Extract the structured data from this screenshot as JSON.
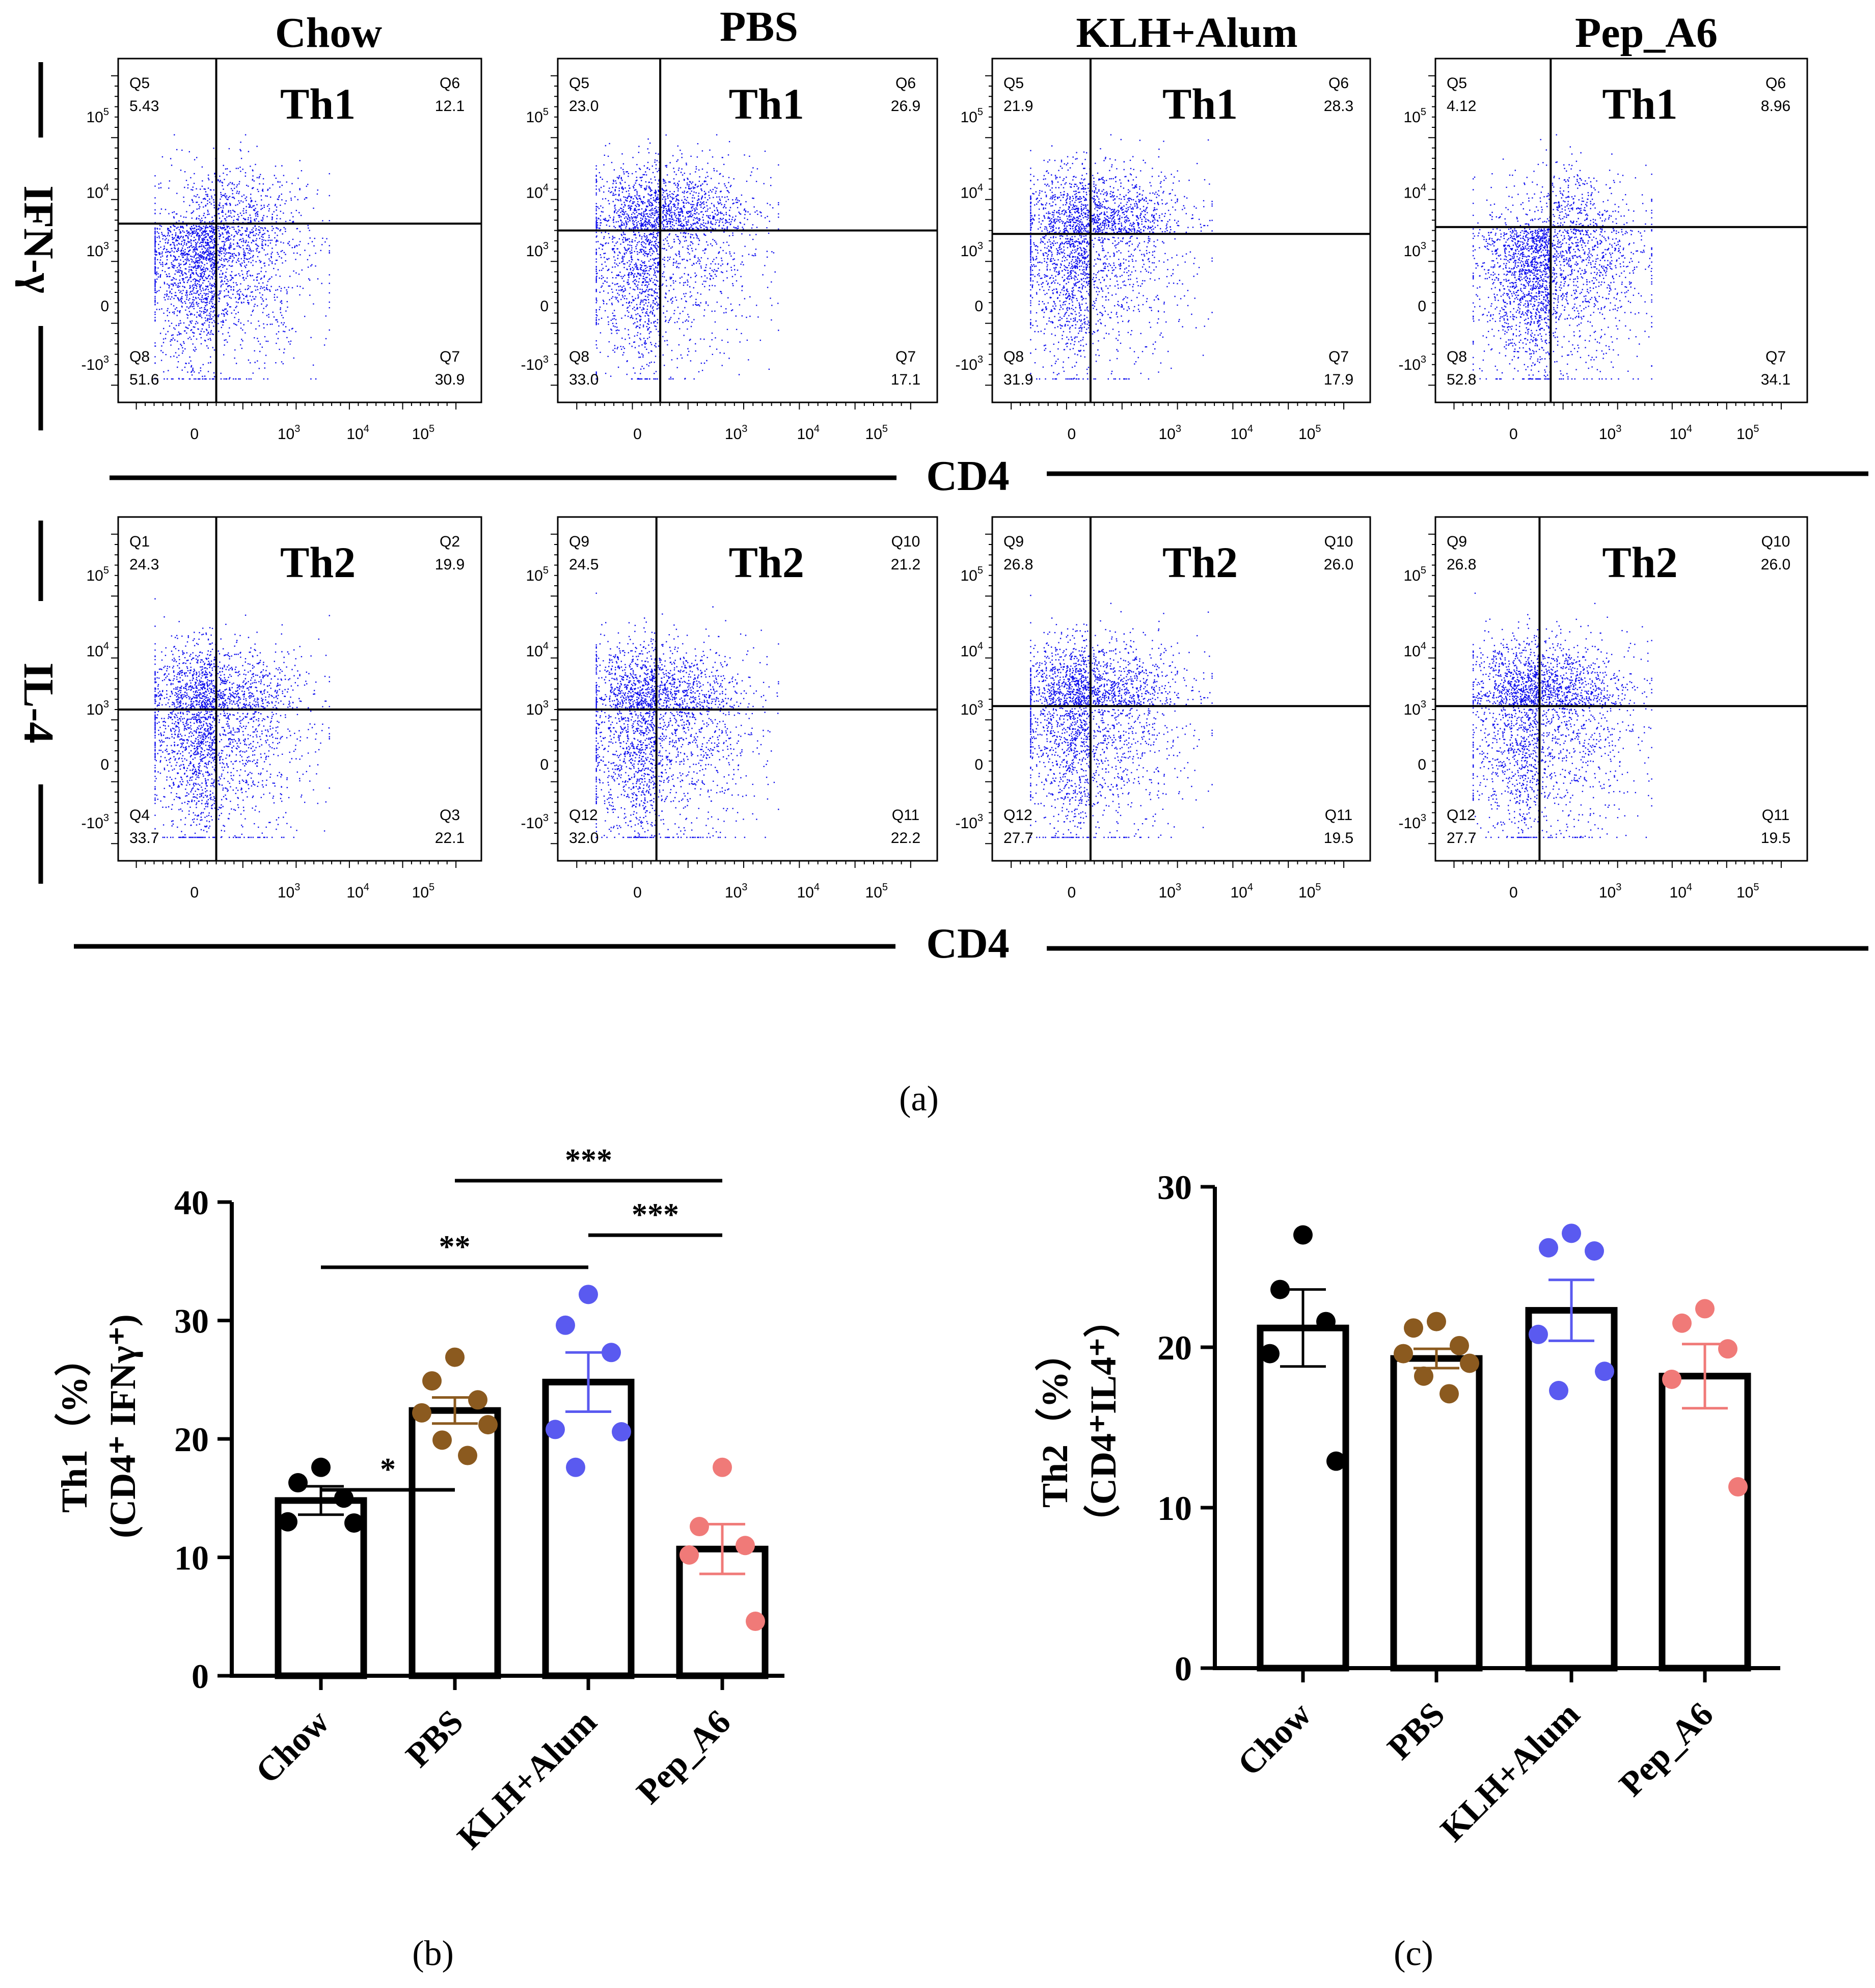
{
  "figure": {
    "panel_a_caption": "(a)",
    "panel_b_caption": "(b)",
    "panel_c_caption": "(c)"
  },
  "colors": {
    "dots": "#1010ee",
    "bar": "#000000",
    "chow": "#000000",
    "pbs": "#8b5a1f",
    "klh": "#5a5af0",
    "pep": "#f07a78"
  },
  "chart_data": [
    {
      "type": "scatter",
      "panel": "a",
      "description_label": "flow cytometry dot plots",
      "columns": [
        "Chow",
        "PBS",
        "KLH+Alum",
        "Pep_A6"
      ],
      "row_axis_labels": [
        "IFN-γ",
        "IL-4"
      ],
      "x_axis_title": "CD4",
      "x_tick_labels": [
        "0",
        "10",
        "10",
        "10"
      ],
      "x_tick_exponents": [
        "",
        "3",
        "4",
        "5"
      ],
      "y_tick_labels": [
        "10",
        "10",
        "10",
        "0",
        "-10"
      ],
      "y_tick_exponents": [
        "5",
        "4",
        "3",
        "",
        "3"
      ],
      "rows": [
        {
          "name": "Th1",
          "plots": [
            {
              "group": "Chow",
              "label": "Th1",
              "quadrants": {
                "ul": {
                  "name": "Q5",
                  "value": "5.43"
                },
                "ur": {
                  "name": "Q6",
                  "value": "12.1"
                },
                "ll": {
                  "name": "Q8",
                  "value": "51.6"
                },
                "lr": {
                  "name": "Q7",
                  "value": "30.9"
                }
              }
            },
            {
              "group": "PBS",
              "label": "Th1",
              "quadrants": {
                "ul": {
                  "name": "Q5",
                  "value": "23.0"
                },
                "ur": {
                  "name": "Q6",
                  "value": "26.9"
                },
                "ll": {
                  "name": "Q8",
                  "value": "33.0"
                },
                "lr": {
                  "name": "Q7",
                  "value": "17.1"
                }
              }
            },
            {
              "group": "KLH+Alum",
              "label": "Th1",
              "quadrants": {
                "ul": {
                  "name": "Q5",
                  "value": "21.9"
                },
                "ur": {
                  "name": "Q6",
                  "value": "28.3"
                },
                "ll": {
                  "name": "Q8",
                  "value": "31.9"
                },
                "lr": {
                  "name": "Q7",
                  "value": "17.9"
                }
              }
            },
            {
              "group": "Pep_A6",
              "label": "Th1",
              "quadrants": {
                "ul": {
                  "name": "Q5",
                  "value": "4.12"
                },
                "ur": {
                  "name": "Q6",
                  "value": "8.96"
                },
                "ll": {
                  "name": "Q8",
                  "value": "52.8"
                },
                "lr": {
                  "name": "Q7",
                  "value": "34.1"
                }
              }
            }
          ]
        },
        {
          "name": "Th2",
          "plots": [
            {
              "group": "Chow",
              "label": "Th2",
              "quadrants": {
                "ul": {
                  "name": "Q1",
                  "value": "24.3"
                },
                "ur": {
                  "name": "Q2",
                  "value": "19.9"
                },
                "ll": {
                  "name": "Q4",
                  "value": "33.7"
                },
                "lr": {
                  "name": "Q3",
                  "value": "22.1"
                }
              }
            },
            {
              "group": "PBS",
              "label": "Th2",
              "quadrants": {
                "ul": {
                  "name": "Q9",
                  "value": "24.5"
                },
                "ur": {
                  "name": "Q10",
                  "value": "21.2"
                },
                "ll": {
                  "name": "Q12",
                  "value": "32.0"
                },
                "lr": {
                  "name": "Q11",
                  "value": "22.2"
                }
              }
            },
            {
              "group": "KLH+Alum",
              "label": "Th2",
              "quadrants": {
                "ul": {
                  "name": "Q9",
                  "value": "26.8"
                },
                "ur": {
                  "name": "Q10",
                  "value": "26.0"
                },
                "ll": {
                  "name": "Q12",
                  "value": "27.7"
                },
                "lr": {
                  "name": "Q11",
                  "value": "19.5"
                }
              }
            },
            {
              "group": "Pep_A6",
              "label": "Th2",
              "quadrants": {
                "ul": {
                  "name": "Q9",
                  "value": "26.8"
                },
                "ur": {
                  "name": "Q10",
                  "value": "26.0"
                },
                "ll": {
                  "name": "Q12",
                  "value": "27.7"
                },
                "lr": {
                  "name": "Q11",
                  "value": "19.5"
                }
              }
            }
          ]
        }
      ]
    },
    {
      "type": "bar",
      "panel": "b",
      "categories": [
        "Chow",
        "PBS",
        "KLH+Alum",
        "Pep_A6"
      ],
      "ylabel_line1": "Th1（%）",
      "ylabel_line2": "(CD4⁺ IFNγ⁺)",
      "ylim": [
        0,
        40
      ],
      "yticks": [
        0,
        10,
        20,
        30,
        40
      ],
      "series": [
        {
          "name": "Chow",
          "mean": 14.8,
          "sem": 1.2,
          "points": [
            17.6,
            16.3,
            15.0,
            13.0,
            12.9
          ]
        },
        {
          "name": "PBS",
          "mean": 22.4,
          "sem": 1.1,
          "points": [
            26.9,
            24.9,
            23.3,
            22.2,
            21.2,
            19.9,
            18.6
          ]
        },
        {
          "name": "KLH+Alum",
          "mean": 24.8,
          "sem": 2.5,
          "points": [
            32.2,
            29.6,
            27.3,
            20.8,
            20.6,
            17.6
          ]
        },
        {
          "name": "Pep_A6",
          "mean": 10.7,
          "sem": 2.1,
          "points": [
            17.6,
            12.6,
            11.0,
            10.2,
            4.6
          ]
        }
      ],
      "significance": [
        {
          "from": 0,
          "to": 1,
          "label": "*"
        },
        {
          "from": 0,
          "to": 2,
          "label": "**"
        },
        {
          "from": 1,
          "to": 3,
          "label": "***"
        },
        {
          "from": 2,
          "to": 3,
          "label": "***"
        }
      ]
    },
    {
      "type": "bar",
      "panel": "c",
      "categories": [
        "Chow",
        "PBS",
        "KLH+Alum",
        "Pep_A6"
      ],
      "ylabel_line1": "Th2（%）",
      "ylabel_line2": "（CD4⁺IL4⁺）",
      "ylim": [
        0,
        30
      ],
      "yticks": [
        0,
        10,
        20,
        30
      ],
      "series": [
        {
          "name": "Chow",
          "mean": 21.2,
          "sem": 2.4,
          "points": [
            27.0,
            23.6,
            21.6,
            19.6,
            12.9
          ]
        },
        {
          "name": "PBS",
          "mean": 19.3,
          "sem": 0.6,
          "points": [
            21.6,
            21.2,
            20.1,
            19.6,
            19.0,
            18.2,
            17.1
          ]
        },
        {
          "name": "KLH+Alum",
          "mean": 22.3,
          "sem": 1.9,
          "points": [
            27.1,
            26.2,
            26.0,
            20.8,
            18.5,
            17.3
          ]
        },
        {
          "name": "Pep_A6",
          "mean": 18.2,
          "sem": 2.0,
          "points": [
            22.4,
            21.5,
            19.9,
            18.0,
            11.3
          ]
        }
      ]
    }
  ]
}
